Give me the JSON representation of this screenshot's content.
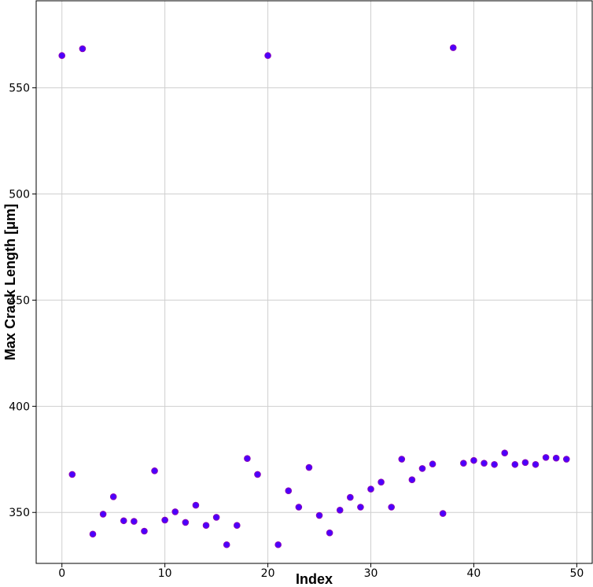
{
  "chart_data": {
    "type": "scatter",
    "title": "",
    "xlabel": "Index",
    "ylabel": "Max Crack Length [μm]",
    "xlim": [
      -2.5,
      51.5
    ],
    "ylim": [
      326,
      591
    ],
    "xticks": [
      0,
      10,
      20,
      30,
      40,
      50
    ],
    "yticks": [
      350,
      400,
      450,
      500,
      550
    ],
    "xtick_labels": [
      "0",
      "10",
      "20",
      "30",
      "40",
      "50"
    ],
    "ytick_labels": [
      "350",
      "400",
      "450",
      "500",
      "550"
    ],
    "grid": true,
    "colors": {
      "marker_fill": "#4b00ff",
      "marker_edge": "#8a00b8"
    },
    "series": [
      {
        "x": [
          0,
          1,
          2,
          3,
          4,
          5,
          6,
          7,
          8,
          9,
          10,
          11,
          12,
          13,
          14,
          15,
          16,
          17,
          18,
          19,
          20,
          21,
          22,
          23,
          24,
          25,
          26,
          27,
          28,
          29,
          30,
          31,
          32,
          33,
          34,
          35,
          36,
          37,
          38,
          39,
          40,
          41,
          42,
          43,
          44,
          45,
          46,
          47,
          48,
          49
        ],
        "values": [
          565.2,
          367.9,
          568.4,
          339.8,
          349.2,
          357.4,
          346.1,
          345.8,
          341.2,
          369.6,
          346.4,
          350.3,
          345.3,
          353.4,
          343.9,
          347.7,
          334.8,
          343.9,
          375.4,
          367.9,
          565.2,
          334.8,
          360.2,
          352.5,
          371.2,
          348.6,
          340.4,
          351.1,
          357.1,
          352.5,
          361.0,
          364.3,
          352.5,
          375.1,
          365.4,
          370.7,
          372.8,
          349.5,
          568.9,
          373.2,
          374.5,
          373.2,
          372.6,
          378.0,
          372.6,
          373.5,
          372.6,
          375.9,
          375.6,
          375.1
        ]
      }
    ]
  }
}
